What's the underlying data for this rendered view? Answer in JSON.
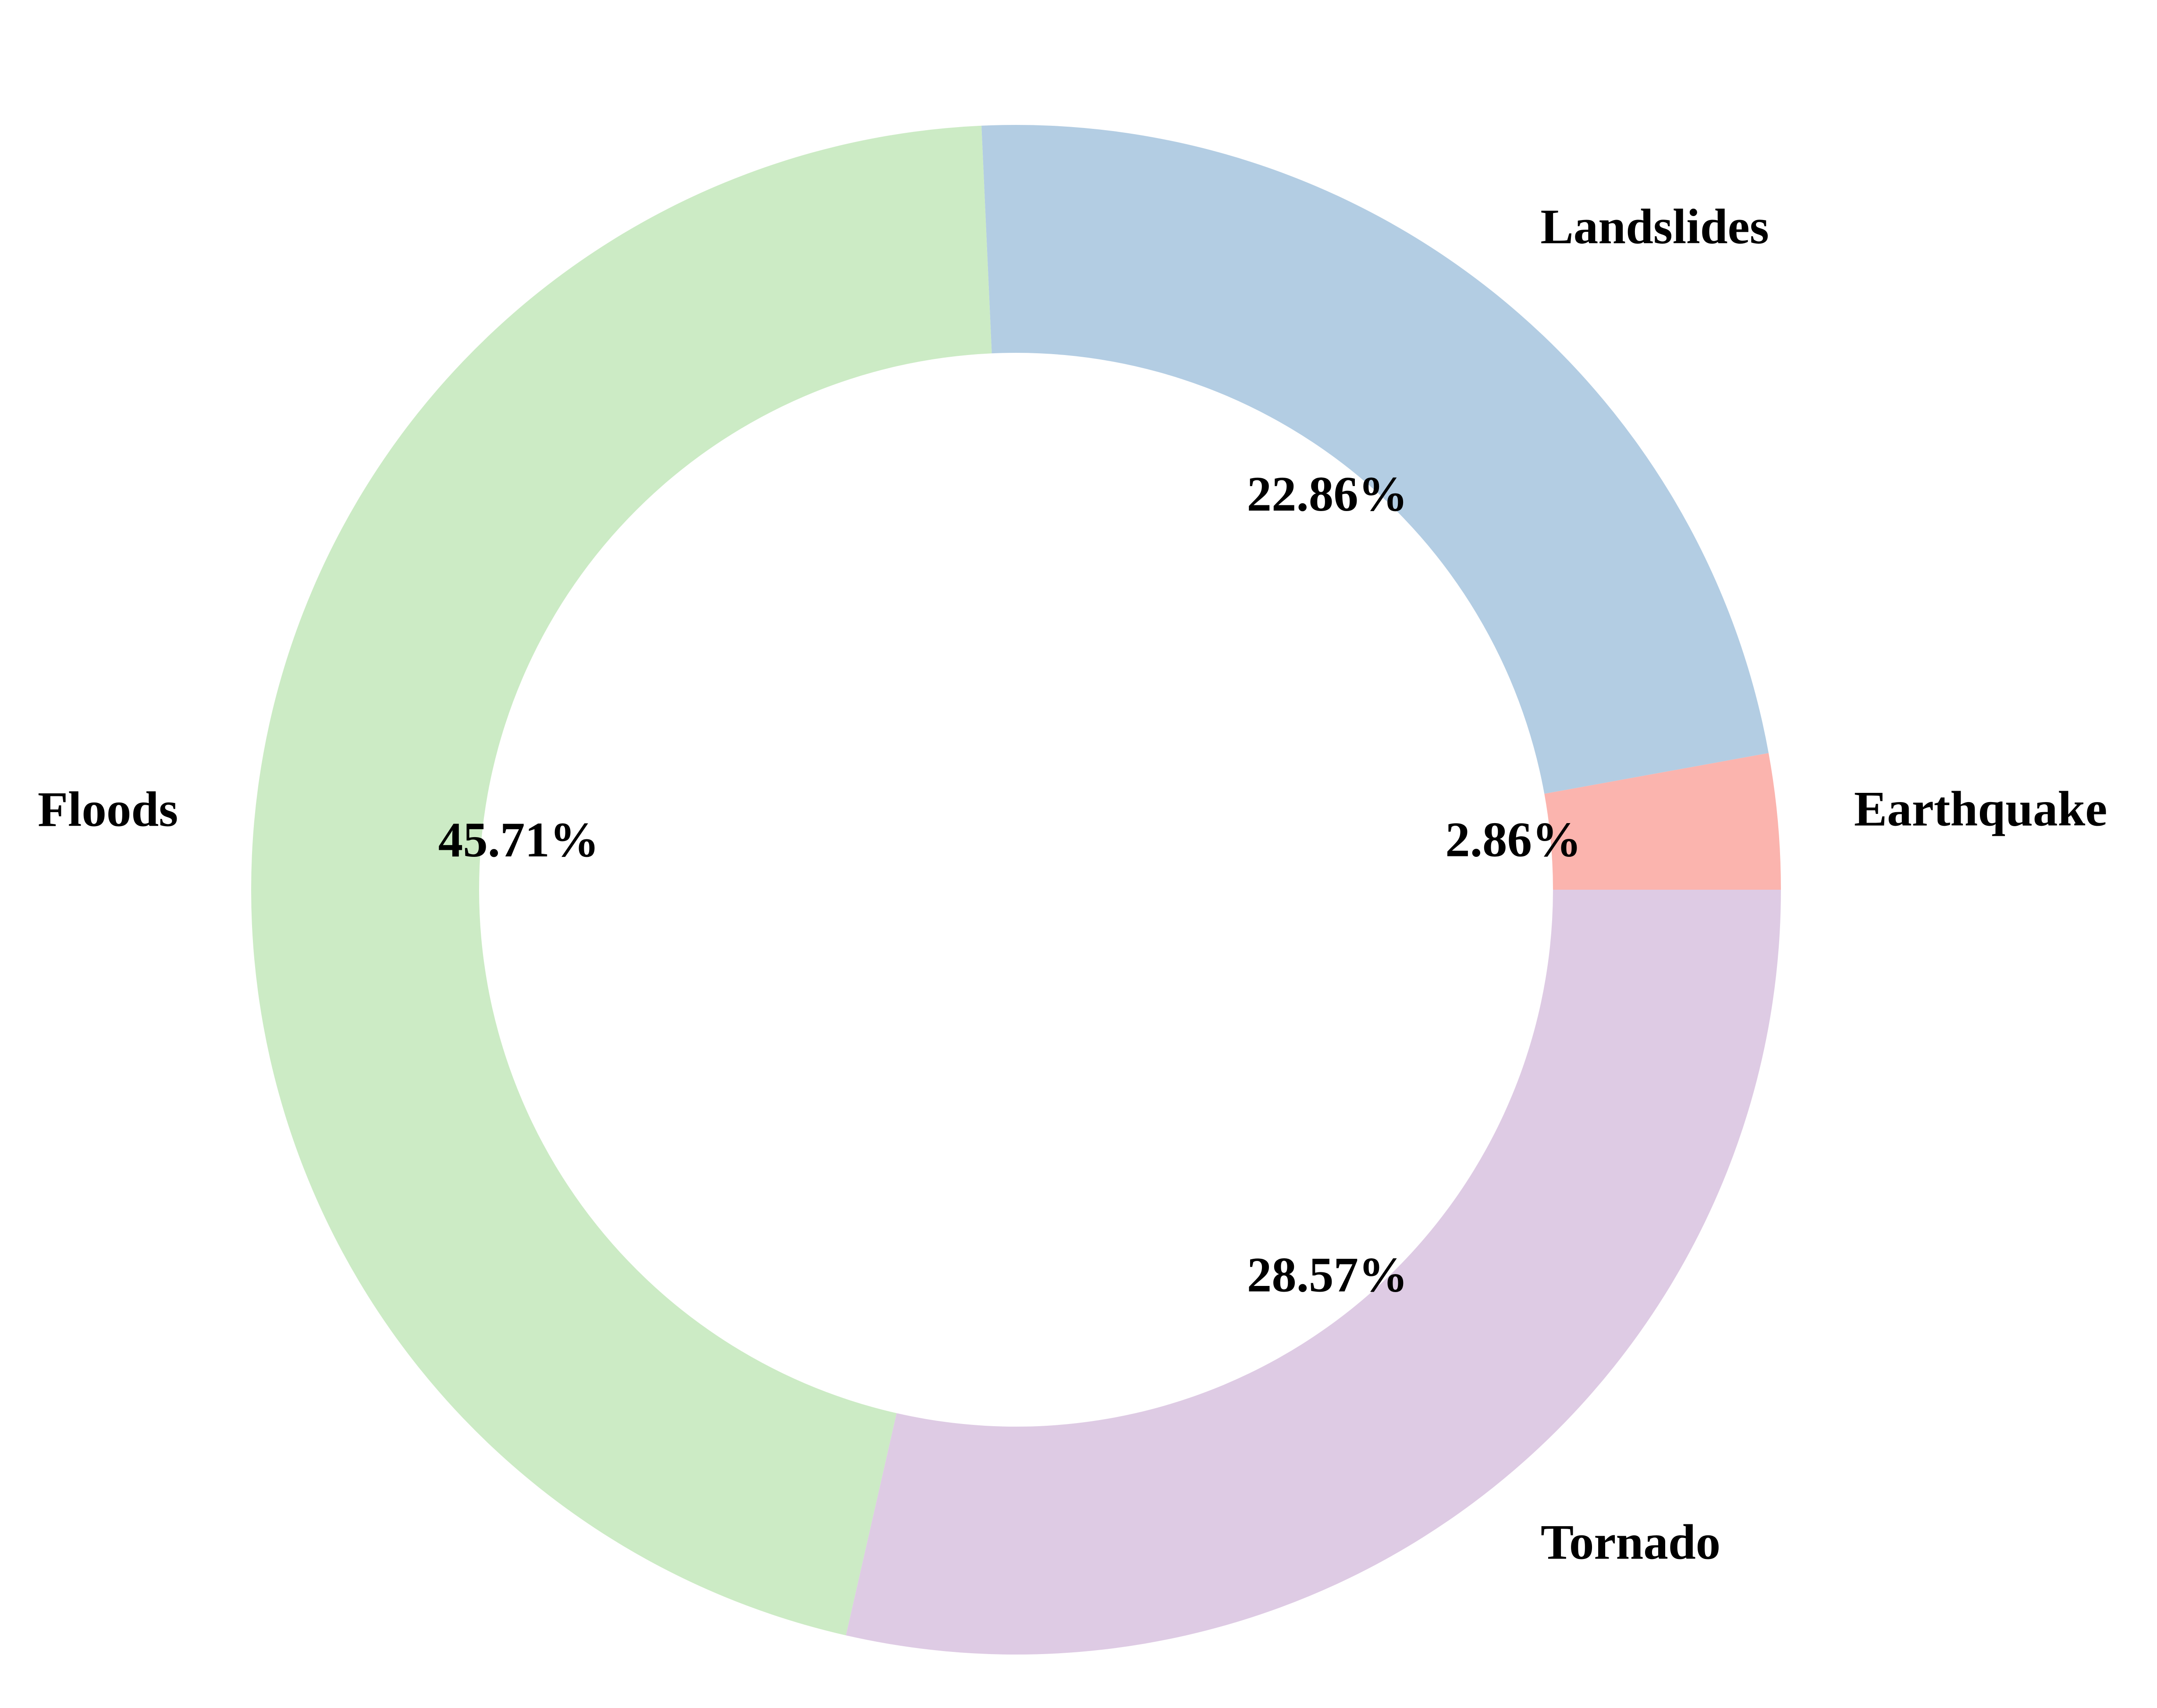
{
  "chart_data": {
    "type": "pie",
    "donut": true,
    "start_angle_deg": 0,
    "direction": "counterclockwise",
    "slices": [
      {
        "label": "Earthquake",
        "value": 2.86,
        "pct_label": "2.86%",
        "color": "#fbb4ae"
      },
      {
        "label": "Landslides",
        "value": 22.86,
        "pct_label": "22.86%",
        "color": "#b3cde3"
      },
      {
        "label": "Floods",
        "value": 45.71,
        "pct_label": "45.71%",
        "color": "#ccebc5"
      },
      {
        "label": "Tornado",
        "value": 28.57,
        "pct_label": "28.57%",
        "color": "#decbe4"
      }
    ]
  }
}
